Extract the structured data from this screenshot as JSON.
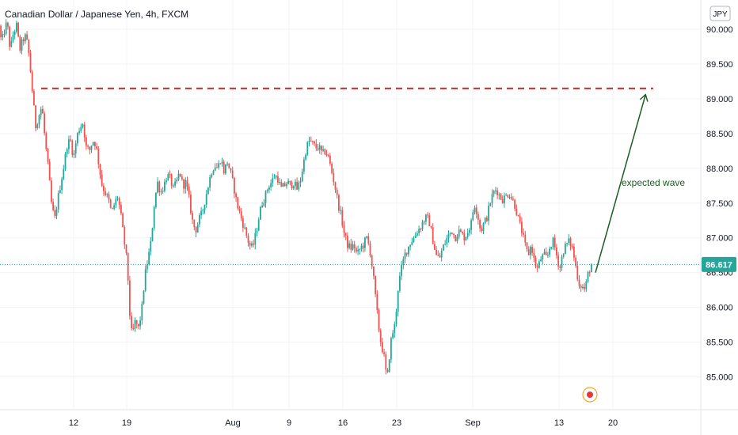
{
  "header": {
    "title": "Canadian Dollar / Japanese Yen, 4h, FXCM"
  },
  "currency_badge": "JPY",
  "price_tag": "86.617",
  "colors": {
    "up": "#26a69a",
    "down": "#ef5350",
    "resistance": "#c62828",
    "arrow": "#1b5e20",
    "price_line": "#26a69a",
    "grid": "#f0f3fa"
  },
  "chart_data": {
    "type": "candlestick",
    "title": "Canadian Dollar / Japanese Yen, 4h, FXCM",
    "ylim": [
      84.55,
      90.35
    ],
    "y_ticks": [
      85.0,
      85.5,
      86.0,
      86.5,
      87.0,
      87.5,
      88.0,
      88.5,
      89.0,
      89.5,
      90.0
    ],
    "y_tick_labels": [
      "85.000",
      "85.500",
      "86.000",
      "86.500",
      "87.000",
      "87.500",
      "88.000",
      "88.500",
      "89.000",
      "89.500",
      "90.000"
    ],
    "x_tick_labels": [
      "12",
      "19",
      "Aug",
      "9",
      "16",
      "23",
      "Sep",
      "13",
      "20"
    ],
    "grid": true,
    "last_price": 86.617,
    "path": [
      [
        0,
        90.05
      ],
      [
        3,
        89.8
      ],
      [
        6,
        89.95
      ],
      [
        10,
        90.1
      ],
      [
        14,
        89.7
      ],
      [
        18,
        89.95
      ],
      [
        22,
        90.05
      ],
      [
        26,
        89.7
      ],
      [
        30,
        89.85
      ],
      [
        34,
        89.9
      ],
      [
        38,
        89.6
      ],
      [
        42,
        89.1
      ],
      [
        46,
        88.6
      ],
      [
        50,
        88.75
      ],
      [
        54,
        88.9
      ],
      [
        58,
        88.4
      ],
      [
        62,
        88.0
      ],
      [
        66,
        87.5
      ],
      [
        70,
        87.25
      ],
      [
        74,
        87.55
      ],
      [
        78,
        87.8
      ],
      [
        82,
        88.05
      ],
      [
        86,
        88.35
      ],
      [
        90,
        88.4
      ],
      [
        94,
        88.15
      ],
      [
        98,
        88.45
      ],
      [
        102,
        88.6
      ],
      [
        106,
        88.65
      ],
      [
        110,
        88.3
      ],
      [
        114,
        88.25
      ],
      [
        118,
        88.4
      ],
      [
        122,
        88.35
      ],
      [
        126,
        88.05
      ],
      [
        130,
        87.75
      ],
      [
        134,
        87.65
      ],
      [
        138,
        87.55
      ],
      [
        142,
        87.35
      ],
      [
        146,
        87.5
      ],
      [
        150,
        87.6
      ],
      [
        154,
        87.3
      ],
      [
        158,
        86.95
      ],
      [
        162,
        86.6
      ],
      [
        164,
        86.1
      ],
      [
        166,
        85.7
      ],
      [
        168,
        85.6
      ],
      [
        172,
        85.8
      ],
      [
        176,
        85.7
      ],
      [
        180,
        85.95
      ],
      [
        184,
        86.45
      ],
      [
        188,
        86.7
      ],
      [
        192,
        86.95
      ],
      [
        196,
        87.5
      ],
      [
        200,
        87.8
      ],
      [
        204,
        87.65
      ],
      [
        208,
        87.75
      ],
      [
        212,
        87.9
      ],
      [
        216,
        87.85
      ],
      [
        220,
        87.7
      ],
      [
        224,
        87.8
      ],
      [
        228,
        87.95
      ],
      [
        232,
        87.75
      ],
      [
        236,
        87.8
      ],
      [
        240,
        87.55
      ],
      [
        244,
        87.25
      ],
      [
        248,
        87.1
      ],
      [
        252,
        87.25
      ],
      [
        256,
        87.35
      ],
      [
        260,
        87.55
      ],
      [
        264,
        87.75
      ],
      [
        268,
        87.95
      ],
      [
        272,
        88.05
      ],
      [
        276,
        88.0
      ],
      [
        280,
        88.15
      ],
      [
        284,
        87.95
      ],
      [
        288,
        88.1
      ],
      [
        292,
        87.95
      ],
      [
        296,
        87.75
      ],
      [
        300,
        87.5
      ],
      [
        304,
        87.35
      ],
      [
        308,
        87.2
      ],
      [
        312,
        87.05
      ],
      [
        316,
        86.9
      ],
      [
        320,
        86.85
      ],
      [
        324,
        87.05
      ],
      [
        328,
        87.3
      ],
      [
        332,
        87.5
      ],
      [
        336,
        87.6
      ],
      [
        340,
        87.75
      ],
      [
        344,
        87.8
      ],
      [
        348,
        87.9
      ],
      [
        352,
        87.85
      ],
      [
        356,
        87.7
      ],
      [
        360,
        87.75
      ],
      [
        364,
        87.8
      ],
      [
        368,
        87.75
      ],
      [
        372,
        87.8
      ],
      [
        376,
        87.7
      ],
      [
        380,
        87.8
      ],
      [
        384,
        88.05
      ],
      [
        388,
        88.3
      ],
      [
        392,
        88.4
      ],
      [
        396,
        88.35
      ],
      [
        400,
        88.3
      ],
      [
        404,
        88.3
      ],
      [
        408,
        88.2
      ],
      [
        412,
        88.25
      ],
      [
        416,
        88.15
      ],
      [
        420,
        87.95
      ],
      [
        424,
        87.75
      ],
      [
        428,
        87.5
      ],
      [
        432,
        87.3
      ],
      [
        436,
        87.05
      ],
      [
        440,
        86.9
      ],
      [
        444,
        86.85
      ],
      [
        448,
        86.9
      ],
      [
        452,
        86.75
      ],
      [
        456,
        86.85
      ],
      [
        460,
        86.9
      ],
      [
        464,
        87.0
      ],
      [
        468,
        86.85
      ],
      [
        472,
        86.5
      ],
      [
        474,
        86.3
      ],
      [
        476,
        86.05
      ],
      [
        478,
        85.85
      ],
      [
        480,
        85.65
      ],
      [
        482,
        85.5
      ],
      [
        484,
        85.4
      ],
      [
        486,
        85.3
      ],
      [
        488,
        85.1
      ],
      [
        490,
        84.95
      ],
      [
        492,
        85.2
      ],
      [
        494,
        85.45
      ],
      [
        496,
        85.6
      ],
      [
        500,
        85.75
      ],
      [
        504,
        86.3
      ],
      [
        508,
        86.55
      ],
      [
        512,
        86.75
      ],
      [
        516,
        86.85
      ],
      [
        520,
        86.95
      ],
      [
        524,
        87.0
      ],
      [
        528,
        87.1
      ],
      [
        532,
        87.15
      ],
      [
        536,
        87.25
      ],
      [
        540,
        87.3
      ],
      [
        544,
        87.2
      ],
      [
        548,
        86.95
      ],
      [
        552,
        86.75
      ],
      [
        556,
        86.7
      ],
      [
        560,
        86.85
      ],
      [
        564,
        86.95
      ],
      [
        568,
        87.05
      ],
      [
        572,
        87.1
      ],
      [
        576,
        87.0
      ],
      [
        580,
        87.1
      ],
      [
        584,
        87.05
      ],
      [
        588,
        87.0
      ],
      [
        592,
        87.1
      ],
      [
        596,
        87.2
      ],
      [
        600,
        87.5
      ],
      [
        604,
        87.35
      ],
      [
        608,
        87.1
      ],
      [
        612,
        87.2
      ],
      [
        616,
        87.3
      ],
      [
        620,
        87.5
      ],
      [
        624,
        87.65
      ],
      [
        628,
        87.7
      ],
      [
        632,
        87.6
      ],
      [
        636,
        87.55
      ],
      [
        640,
        87.6
      ],
      [
        644,
        87.65
      ],
      [
        648,
        87.55
      ],
      [
        652,
        87.45
      ],
      [
        656,
        87.25
      ],
      [
        660,
        87.1
      ],
      [
        664,
        86.9
      ],
      [
        668,
        86.75
      ],
      [
        672,
        86.9
      ],
      [
        676,
        86.65
      ],
      [
        680,
        86.55
      ],
      [
        684,
        86.7
      ],
      [
        688,
        86.75
      ],
      [
        692,
        86.7
      ],
      [
        696,
        86.9
      ],
      [
        700,
        86.95
      ],
      [
        704,
        86.75
      ],
      [
        708,
        86.55
      ],
      [
        712,
        86.8
      ],
      [
        716,
        86.9
      ],
      [
        720,
        86.95
      ],
      [
        724,
        86.85
      ],
      [
        728,
        86.6
      ],
      [
        732,
        86.35
      ],
      [
        736,
        86.3
      ],
      [
        740,
        86.25
      ],
      [
        744,
        86.5
      ],
      [
        748,
        86.617
      ]
    ],
    "resistance_level": 89.15,
    "annotations": [
      {
        "text": "expected wave",
        "from": [
          752,
          86.5
        ],
        "to": [
          815,
          89.05
        ]
      }
    ]
  }
}
